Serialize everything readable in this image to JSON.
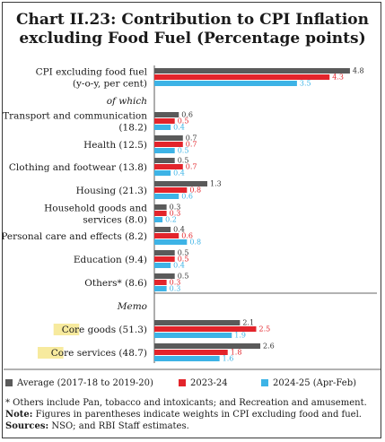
{
  "title_line1": "Chart II.23: Contribution to CPI Inflation",
  "title_line2": "excluding Food Fuel (Percentage points)",
  "chart_data": {
    "type": "bar",
    "orientation": "horizontal",
    "rows": [
      {
        "label_lines": [
          "CPI excluding food fuel",
          "(y-o-y, per cent)"
        ],
        "values": [
          4.8,
          4.3,
          3.5
        ]
      },
      {
        "header": "of which"
      },
      {
        "label_lines": [
          "Transport and communication",
          "(18.2)"
        ],
        "values": [
          0.6,
          0.5,
          0.4
        ]
      },
      {
        "label_lines": [
          "Health (12.5)"
        ],
        "values": [
          0.7,
          0.7,
          0.5
        ]
      },
      {
        "label_lines": [
          "Clothing and footwear (13.8)"
        ],
        "values": [
          0.5,
          0.7,
          0.4
        ]
      },
      {
        "label_lines": [
          "Housing (21.3)"
        ],
        "values": [
          1.3,
          0.8,
          0.6
        ]
      },
      {
        "label_lines": [
          "Household goods and",
          "services (8.0)"
        ],
        "values": [
          0.3,
          0.3,
          0.2
        ]
      },
      {
        "label_lines": [
          "Personal care and effects (8.2)"
        ],
        "values": [
          0.4,
          0.6,
          0.8
        ]
      },
      {
        "label_lines": [
          "Education (9.4)"
        ],
        "values": [
          0.5,
          0.5,
          0.4
        ]
      },
      {
        "label_lines": [
          "Others* (8.6)"
        ],
        "values": [
          0.5,
          0.3,
          0.3
        ]
      },
      {
        "header": "Memo"
      },
      {
        "label_lines": [
          "Core goods (51.3)"
        ],
        "highlight": "Core",
        "values": [
          2.1,
          2.5,
          1.9
        ]
      },
      {
        "label_lines": [
          "Core services (48.7)"
        ],
        "highlight": "Core",
        "values": [
          2.6,
          1.8,
          1.6
        ]
      }
    ],
    "series": [
      {
        "name": "Average (2017-18 to 2019-20)",
        "color": "#5a5a5a"
      },
      {
        "name": "2023-24",
        "color": "#e3242b"
      },
      {
        "name": "2024-25 (Apr-Feb)",
        "color": "#3db3e6"
      }
    ],
    "xlim": [
      0,
      5
    ]
  },
  "footnotes": {
    "line1": "* Others include Pan, tobacco and intoxicants; and Recreation and amusement.",
    "note_label": "Note:",
    "note_text": " Figures in parentheses indicate weights in CPI excluding food and fuel.",
    "sources_label": "Sources:",
    "sources_text": " NSO; and RBI Staff estimates."
  },
  "highlight_color": "#f7ea9e"
}
